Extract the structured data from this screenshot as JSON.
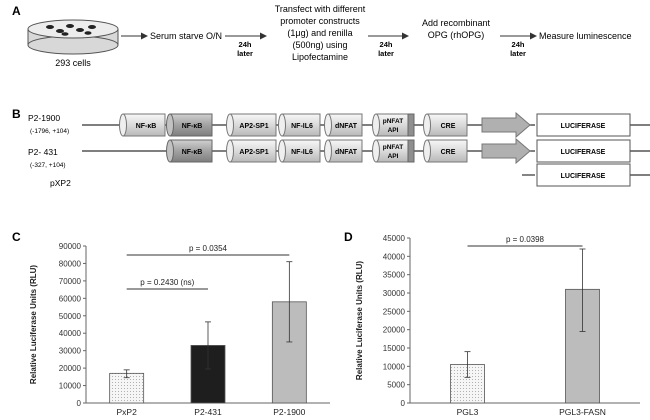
{
  "panel_a": {
    "label": "A",
    "cells_label": "293 cells",
    "step1": "Serum starve O/N",
    "interval1_l1": "24h",
    "interval1_l2": "later",
    "step2_l1": "Transfect with different",
    "step2_l2": "promoter constructs",
    "step2_l3": "(1μg) and renilla",
    "step2_l4": "(500ng) using",
    "step2_l5": "Lipofectamine",
    "interval2_l1": "24h",
    "interval2_l2": "later",
    "step3_l1": "Add recombinant",
    "step3_l2": "OPG (rhOPG)",
    "interval3_l1": "24h",
    "interval3_l2": "later",
    "step4": "Measure luminescence"
  },
  "panel_b": {
    "label": "B",
    "constructs": [
      {
        "name": "P2-1900",
        "range": "(-1796, +104)"
      },
      {
        "name": "P2- 431",
        "range": "(-327, +104)"
      },
      {
        "name": "pXP2",
        "range": ""
      }
    ],
    "elements": {
      "nfkb1": "NF-κB",
      "nfkb2": "NF-κB",
      "ap2sp1": "AP2-SP1",
      "nfil6": "NF-IL6",
      "dnfat": "dNFAT",
      "pnfat_l1": "pNFAT",
      "pnfat_l2": "API",
      "cre": "CRE",
      "luciferase": "LUCIFERASE"
    }
  },
  "chart_data": [
    {
      "type": "bar",
      "panel": "C",
      "title": "",
      "xlabel": "",
      "ylabel": "Relative Luciferase Units (RLU)",
      "categories": [
        "PxP2",
        "P2-431",
        "P2-1900"
      ],
      "values": [
        17000,
        33000,
        58000
      ],
      "error_high": [
        19000,
        46500,
        81000
      ],
      "error_low": [
        14500,
        19500,
        35000
      ],
      "ylim": [
        0,
        90000
      ],
      "ticks": [
        "0",
        "10000",
        "20000",
        "30000",
        "40000",
        "50000",
        "60000",
        "70000",
        "80000",
        "90000"
      ],
      "annotations": [
        {
          "text": "p = 0.0354",
          "from": "PxP2",
          "to": "P2-1900"
        },
        {
          "text": "p = 0.2430 (ns)",
          "from": "PxP2",
          "to": "P2-431"
        }
      ],
      "colors": [
        "#f2f2f2",
        "#1e1e1e",
        "#bcbcbc"
      ]
    },
    {
      "type": "bar",
      "panel": "D",
      "title": "",
      "xlabel": "",
      "ylabel": "Relative Luciferase Units (RLU)",
      "categories": [
        "PGL3",
        "PGL3-FASN"
      ],
      "values": [
        10500,
        31000
      ],
      "error_high": [
        14000,
        42000
      ],
      "error_low": [
        7000,
        19500
      ],
      "ylim": [
        0,
        45000
      ],
      "ticks": [
        "0",
        "5000",
        "10000",
        "15000",
        "20000",
        "25000",
        "30000",
        "35000",
        "40000",
        "45000"
      ],
      "annotations": [
        {
          "text": "p = 0.0398",
          "from": "PGL3",
          "to": "PGL3-FASN"
        }
      ],
      "colors": [
        "#f2f2f2",
        "#bcbcbc"
      ]
    }
  ]
}
